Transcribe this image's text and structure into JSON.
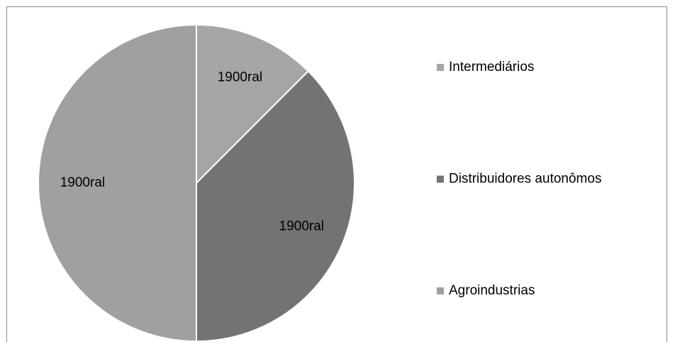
{
  "chart_data": {
    "type": "pie",
    "categories": [
      "Intermediários",
      "Distribuidores autonômos",
      "Agroindustrias"
    ],
    "values": [
      12.5,
      37.5,
      50
    ],
    "value_labels": [
      "1900ral",
      "1900ral",
      "1900ral"
    ],
    "colors": [
      "#a6a6a6",
      "#737373",
      "#a0a0a0"
    ],
    "legend": "right"
  }
}
